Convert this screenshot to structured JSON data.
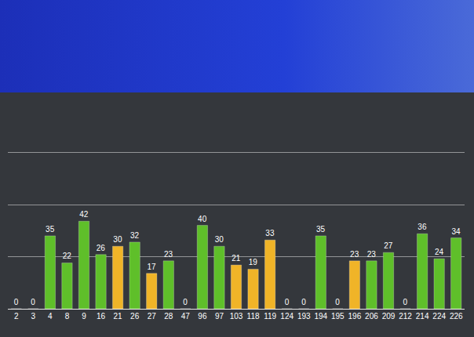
{
  "chart_data": {
    "type": "bar",
    "categories": [
      "2",
      "3",
      "4",
      "8",
      "9",
      "16",
      "21",
      "26",
      "27",
      "28",
      "47",
      "96",
      "97",
      "103",
      "118",
      "119",
      "124",
      "193",
      "194",
      "195",
      "196",
      "206",
      "209",
      "212",
      "214",
      "224",
      "226"
    ],
    "values": [
      0,
      0,
      35,
      22,
      42,
      26,
      30,
      32,
      17,
      23,
      0,
      40,
      30,
      21,
      19,
      33,
      0,
      0,
      35,
      0,
      23,
      23,
      27,
      0,
      36,
      24,
      34
    ],
    "colors": [
      "#5fbf2a",
      "#5fbf2a",
      "#5fbf2a",
      "#5fbf2a",
      "#5fbf2a",
      "#5fbf2a",
      "#f0b428",
      "#5fbf2a",
      "#f0b428",
      "#5fbf2a",
      "#5fbf2a",
      "#5fbf2a",
      "#5fbf2a",
      "#f0b428",
      "#f0b428",
      "#f0b428",
      "#5fbf2a",
      "#5fbf2a",
      "#5fbf2a",
      "#5fbf2a",
      "#f0b428",
      "#5fbf2a",
      "#5fbf2a",
      "#5fbf2a",
      "#5fbf2a",
      "#5fbf2a",
      "#5fbf2a"
    ],
    "ylim": [
      0,
      100
    ],
    "yticks": [
      0,
      25,
      50,
      75,
      100
    ],
    "grid": true,
    "data_labels": true,
    "tick_labels": "x"
  }
}
